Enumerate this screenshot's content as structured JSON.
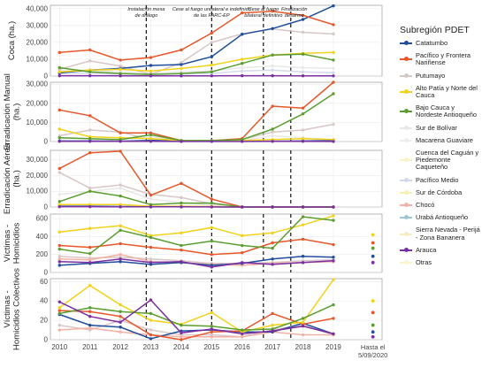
{
  "chart_data": {
    "type": "line",
    "x": [
      2010,
      2011,
      2012,
      2013,
      2014,
      2015,
      2016,
      2017,
      2018,
      2019
    ],
    "extra_x_label": "Hasta el 5/09/2020",
    "x_tick_labels": [
      "2010",
      "2011",
      "2012",
      "2013",
      "2014",
      "2015",
      "2016",
      "2017",
      "2018",
      "2019"
    ],
    "events": [
      {
        "x": 2012.85,
        "label": "Instalación mesa de diálogo"
      },
      {
        "x": 2015.0,
        "label": "Cese al fuego unilateral e indefinido de las FARC-EP"
      },
      {
        "x": 2016.7,
        "label": "Cese al fuego bilateral definitivo"
      },
      {
        "x": 2017.6,
        "label": "Finalización desarme"
      }
    ],
    "legend_title": "Subregión PDET",
    "colors": {
      "Catatumbo": "#1f4e9c",
      "Pacífico y Frontera Nariñense": "#e8572a",
      "Putumayo": "#d9c7c7",
      "Alto Patía y Norte del Cauca": "#f2d21b",
      "Bajo Cauca y Nordeste Antioqueño": "#5a9e2f",
      "Sur de Bolívar": "#e8e8e8",
      "Macarena Guaviare": "#ededed",
      "Cuenca del Caguán y Piedemonte Caqueteño": "#fbf3c4",
      "Pacífico Medio": "#d4d9ea",
      "Sur de Córdoba": "#f9f0b0",
      "Chocó": "#f3b1a5",
      "Urabá Antioqueño": "#9bc7d6",
      "Sierra Nevada - Perijá - Zona Bananera": "#f6ecc0",
      "Arauca": "#7b2fa3",
      "Otras": "#faf5ce"
    },
    "legend": [
      "Catatumbo",
      "Pacífico y Frontera Nariñense",
      "Putumayo",
      "Alto Patía y Norte del Cauca",
      "Bajo Cauca y Nordeste Antioqueño",
      "Sur de Bolívar",
      "Macarena Guaviare",
      "Cuenca del Caguán y Piedemonte Caqueteño",
      "Pacífico Medio",
      "Sur de Córdoba",
      "Chocó",
      "Urabá Antioqueño",
      "Sierra Nevada - Perijá - Zona Bananera",
      "Arauca",
      "Otras"
    ],
    "panels": [
      {
        "ylabel": "Coca (ha.)",
        "ylim": [
          0,
          42000
        ],
        "yticks": [
          0,
          10000,
          20000,
          30000,
          40000
        ],
        "ytick_labels": [
          "0",
          "10,000",
          "20,000",
          "30,000",
          "40,000"
        ],
        "series": [
          {
            "name": "Sur de Bolívar",
            "values": [
              3000,
              3500,
              2500,
              2000,
              2500,
              3000,
              5000,
              6000,
              5000,
              4500
            ]
          },
          {
            "name": "Putumayo",
            "values": [
              4000,
              9000,
              6000,
              1000,
              8000,
              20000,
              25000,
              28000,
              26000,
              25000
            ]
          },
          {
            "name": "Pacífico Medio",
            "values": [
              1500,
              1800,
              1200,
              1000,
              1200,
              1500,
              3000,
              3500,
              2500,
              2000
            ]
          },
          {
            "name": "Catatumbo",
            "values": [
              1900,
              3500,
              4500,
              6300,
              6800,
              11500,
              24800,
              28200,
              33600,
              41700
            ]
          },
          {
            "name": "Pacífico y Frontera Nariñense",
            "values": [
              14000,
              15500,
              9500,
              11000,
              15500,
              25500,
              37500,
              38500,
              36000,
              30500
            ]
          },
          {
            "name": "Alto Patía y Norte del Cauca",
            "values": [
              2500,
              3500,
              4000,
              3000,
              4500,
              6500,
              10000,
              12500,
              13500,
              14000
            ]
          },
          {
            "name": "Bajo Cauca y Nordeste Antioqueño",
            "values": [
              5000,
              2500,
              1500,
              1000,
              1500,
              2500,
              7500,
              12500,
              13000,
              9500
            ]
          },
          {
            "name": "Arauca",
            "values": [
              200,
              200,
              150,
              100,
              100,
              150,
              200,
              200,
              150,
              100
            ]
          }
        ]
      },
      {
        "ylabel": "Erradicación Manual (ha.)",
        "ylim": [
          0,
          31000
        ],
        "yticks": [
          0,
          10000,
          20000,
          30000
        ],
        "ytick_labels": [
          "0",
          "10,000",
          "20,000",
          "30,000"
        ],
        "series": [
          {
            "name": "Putumayo",
            "values": [
              3000,
              6000,
              5000,
              1000,
              500,
              500,
              1000,
              5000,
              6000,
              9000
            ]
          },
          {
            "name": "Sur de Bolívar",
            "values": [
              2000,
              1500,
              1000,
              2500,
              500,
              500,
              500,
              3000,
              2000,
              1000
            ]
          },
          {
            "name": "Catatumbo",
            "values": [
              300,
              300,
              200,
              600,
              200,
              100,
              200,
              200,
              300,
              500
            ]
          },
          {
            "name": "Pacífico y Frontera Nariñense",
            "values": [
              16500,
              13500,
              4500,
              4500,
              500,
              500,
              1500,
              18500,
              17500,
              31000
            ]
          },
          {
            "name": "Alto Patía y Norte del Cauca",
            "values": [
              6500,
              2500,
              2000,
              1500,
              500,
              500,
              500,
              1000,
              1500,
              1000
            ]
          },
          {
            "name": "Bajo Cauca y Nordeste Antioqueño",
            "values": [
              2000,
              1500,
              1000,
              3500,
              500,
              500,
              1000,
              6500,
              14500,
              25000
            ]
          },
          {
            "name": "Arauca",
            "values": [
              100,
              100,
              100,
              100,
              50,
              50,
              50,
              100,
              100,
              50
            ]
          }
        ]
      },
      {
        "ylabel": "Erradicación Aérea (ha.)",
        "ylim": [
          0,
          36000
        ],
        "yticks": [
          0,
          10000,
          20000,
          30000
        ],
        "ytick_labels": [
          "0",
          "10,000",
          "20,000",
          "30,000"
        ],
        "series": [
          {
            "name": "Putumayo",
            "values": [
              22000,
              12000,
              14000,
              8000,
              6000,
              2000,
              0,
              0,
              0,
              0
            ]
          },
          {
            "name": "Sur de Bolívar",
            "values": [
              8000,
              10000,
              12000,
              5000,
              3000,
              1000,
              0,
              0,
              0,
              0
            ]
          },
          {
            "name": "Catatumbo",
            "values": [
              500,
              500,
              300,
              200,
              200,
              100,
              0,
              0,
              0,
              0
            ]
          },
          {
            "name": "Pacífico y Frontera Nariñense",
            "values": [
              24500,
              34500,
              35500,
              7500,
              15000,
              5000,
              0,
              0,
              0,
              0
            ]
          },
          {
            "name": "Alto Patía y Norte del Cauca",
            "values": [
              1500,
              1500,
              1500,
              500,
              500,
              300,
              0,
              0,
              0,
              0
            ]
          },
          {
            "name": "Bajo Cauca y Nordeste Antioqueño",
            "values": [
              3500,
              10000,
              7000,
              1500,
              2500,
              2500,
              0,
              0,
              0,
              0
            ]
          },
          {
            "name": "Arauca",
            "values": [
              200,
              200,
              100,
              100,
              100,
              50,
              0,
              0,
              0,
              0
            ]
          }
        ]
      },
      {
        "ylabel": "Víctimas - Homicidios",
        "ylim": [
          0,
          650
        ],
        "yticks": [
          0,
          200,
          400,
          600
        ],
        "ytick_labels": [
          "0",
          "200",
          "400",
          "600"
        ],
        "extra_points": [
          {
            "name": "Alto Patía y Norte del Cauca",
            "value": 420
          },
          {
            "name": "Pacífico y Frontera Nariñense",
            "value": 330
          },
          {
            "name": "Bajo Cauca y Nordeste Antioqueño",
            "value": 270
          },
          {
            "name": "Catatumbo",
            "value": 180
          },
          {
            "name": "Arauca",
            "value": 110
          }
        ],
        "series": [
          {
            "name": "Putumayo",
            "values": [
              180,
              160,
              170,
              150,
              130,
              100,
              100,
              110,
              130,
              140
            ]
          },
          {
            "name": "Chocó",
            "values": [
              150,
              140,
              200,
              120,
              110,
              90,
              80,
              100,
              110,
              120
            ]
          },
          {
            "name": "Catatumbo",
            "values": [
              80,
              100,
              120,
              90,
              110,
              80,
              100,
              150,
              180,
              170
            ]
          },
          {
            "name": "Pacífico y Frontera Nariñense",
            "values": [
              300,
              280,
              320,
              280,
              250,
              200,
              220,
              330,
              370,
              310
            ]
          },
          {
            "name": "Alto Patía y Norte del Cauca",
            "values": [
              450,
              490,
              520,
              410,
              440,
              500,
              410,
              440,
              530,
              630
            ]
          },
          {
            "name": "Bajo Cauca y Nordeste Antioqueño",
            "values": [
              260,
              210,
              470,
              390,
              300,
              350,
              300,
              270,
              620,
              580
            ]
          },
          {
            "name": "Arauca",
            "values": [
              120,
              110,
              150,
              110,
              120,
              60,
              110,
              90,
              110,
              130
            ]
          }
        ]
      },
      {
        "ylabel": "Víctimas - Homicidios Colectivos",
        "ylim": [
          0,
          63
        ],
        "yticks": [
          0,
          20,
          40,
          60
        ],
        "ytick_labels": [
          "0",
          "20",
          "40",
          "60"
        ],
        "extra_points": [
          {
            "name": "Alto Patía y Norte del Cauca",
            "value": 40
          },
          {
            "name": "Pacífico y Frontera Nariñense",
            "value": 28
          },
          {
            "name": "Bajo Cauca y Nordeste Antioqueño",
            "value": 15
          },
          {
            "name": "Catatumbo",
            "value": 8
          },
          {
            "name": "Arauca",
            "value": 3
          }
        ],
        "series": [
          {
            "name": "Putumayo",
            "values": [
              15,
              10,
              20,
              10,
              5,
              5,
              3,
              10,
              15,
              5
            ]
          },
          {
            "name": "Chocó",
            "values": [
              10,
              12,
              8,
              5,
              3,
              3,
              3,
              8,
              5,
              5
            ]
          },
          {
            "name": "Catatumbo",
            "values": [
              26,
              15,
              13,
              1,
              9,
              10,
              8,
              8,
              17,
              6
            ]
          },
          {
            "name": "Pacífico y Frontera Nariñense",
            "values": [
              30,
              29,
              24,
              5,
              0,
              8,
              9,
              27,
              16,
              22
            ]
          },
          {
            "name": "Alto Patía y Norte del Cauca",
            "values": [
              33,
              56,
              36,
              20,
              16,
              28,
              8,
              15,
              18,
              62
            ]
          },
          {
            "name": "Bajo Cauca y Nordeste Antioqueño",
            "values": [
              27,
              33,
              29,
              27,
              15,
              14,
              10,
              11,
              22,
              36
            ]
          },
          {
            "name": "Arauca",
            "values": [
              39,
              24,
              18,
              41,
              7,
              11,
              6,
              9,
              14,
              6
            ]
          }
        ]
      }
    ]
  }
}
